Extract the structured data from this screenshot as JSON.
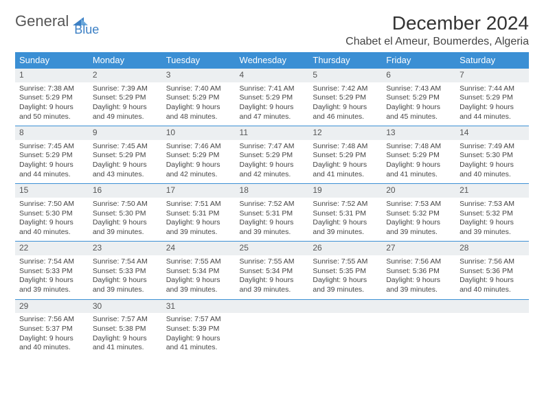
{
  "logo": {
    "text1": "General",
    "text2": "Blue"
  },
  "title": "December 2024",
  "location": "Chabet el Ameur, Boumerdes, Algeria",
  "colors": {
    "header_bg": "#3b8fd4",
    "header_text": "#ffffff",
    "daynum_bg": "#eceff1",
    "row_border": "#3b8fd4",
    "logo_blue": "#3b7fc4",
    "body_text": "#444444"
  },
  "weekdays": [
    "Sunday",
    "Monday",
    "Tuesday",
    "Wednesday",
    "Thursday",
    "Friday",
    "Saturday"
  ],
  "weeks": [
    [
      {
        "n": "1",
        "sr": "Sunrise: 7:38 AM",
        "ss": "Sunset: 5:29 PM",
        "d1": "Daylight: 9 hours",
        "d2": "and 50 minutes."
      },
      {
        "n": "2",
        "sr": "Sunrise: 7:39 AM",
        "ss": "Sunset: 5:29 PM",
        "d1": "Daylight: 9 hours",
        "d2": "and 49 minutes."
      },
      {
        "n": "3",
        "sr": "Sunrise: 7:40 AM",
        "ss": "Sunset: 5:29 PM",
        "d1": "Daylight: 9 hours",
        "d2": "and 48 minutes."
      },
      {
        "n": "4",
        "sr": "Sunrise: 7:41 AM",
        "ss": "Sunset: 5:29 PM",
        "d1": "Daylight: 9 hours",
        "d2": "and 47 minutes."
      },
      {
        "n": "5",
        "sr": "Sunrise: 7:42 AM",
        "ss": "Sunset: 5:29 PM",
        "d1": "Daylight: 9 hours",
        "d2": "and 46 minutes."
      },
      {
        "n": "6",
        "sr": "Sunrise: 7:43 AM",
        "ss": "Sunset: 5:29 PM",
        "d1": "Daylight: 9 hours",
        "d2": "and 45 minutes."
      },
      {
        "n": "7",
        "sr": "Sunrise: 7:44 AM",
        "ss": "Sunset: 5:29 PM",
        "d1": "Daylight: 9 hours",
        "d2": "and 44 minutes."
      }
    ],
    [
      {
        "n": "8",
        "sr": "Sunrise: 7:45 AM",
        "ss": "Sunset: 5:29 PM",
        "d1": "Daylight: 9 hours",
        "d2": "and 44 minutes."
      },
      {
        "n": "9",
        "sr": "Sunrise: 7:45 AM",
        "ss": "Sunset: 5:29 PM",
        "d1": "Daylight: 9 hours",
        "d2": "and 43 minutes."
      },
      {
        "n": "10",
        "sr": "Sunrise: 7:46 AM",
        "ss": "Sunset: 5:29 PM",
        "d1": "Daylight: 9 hours",
        "d2": "and 42 minutes."
      },
      {
        "n": "11",
        "sr": "Sunrise: 7:47 AM",
        "ss": "Sunset: 5:29 PM",
        "d1": "Daylight: 9 hours",
        "d2": "and 42 minutes."
      },
      {
        "n": "12",
        "sr": "Sunrise: 7:48 AM",
        "ss": "Sunset: 5:29 PM",
        "d1": "Daylight: 9 hours",
        "d2": "and 41 minutes."
      },
      {
        "n": "13",
        "sr": "Sunrise: 7:48 AM",
        "ss": "Sunset: 5:29 PM",
        "d1": "Daylight: 9 hours",
        "d2": "and 41 minutes."
      },
      {
        "n": "14",
        "sr": "Sunrise: 7:49 AM",
        "ss": "Sunset: 5:30 PM",
        "d1": "Daylight: 9 hours",
        "d2": "and 40 minutes."
      }
    ],
    [
      {
        "n": "15",
        "sr": "Sunrise: 7:50 AM",
        "ss": "Sunset: 5:30 PM",
        "d1": "Daylight: 9 hours",
        "d2": "and 40 minutes."
      },
      {
        "n": "16",
        "sr": "Sunrise: 7:50 AM",
        "ss": "Sunset: 5:30 PM",
        "d1": "Daylight: 9 hours",
        "d2": "and 39 minutes."
      },
      {
        "n": "17",
        "sr": "Sunrise: 7:51 AM",
        "ss": "Sunset: 5:31 PM",
        "d1": "Daylight: 9 hours",
        "d2": "and 39 minutes."
      },
      {
        "n": "18",
        "sr": "Sunrise: 7:52 AM",
        "ss": "Sunset: 5:31 PM",
        "d1": "Daylight: 9 hours",
        "d2": "and 39 minutes."
      },
      {
        "n": "19",
        "sr": "Sunrise: 7:52 AM",
        "ss": "Sunset: 5:31 PM",
        "d1": "Daylight: 9 hours",
        "d2": "and 39 minutes."
      },
      {
        "n": "20",
        "sr": "Sunrise: 7:53 AM",
        "ss": "Sunset: 5:32 PM",
        "d1": "Daylight: 9 hours",
        "d2": "and 39 minutes."
      },
      {
        "n": "21",
        "sr": "Sunrise: 7:53 AM",
        "ss": "Sunset: 5:32 PM",
        "d1": "Daylight: 9 hours",
        "d2": "and 39 minutes."
      }
    ],
    [
      {
        "n": "22",
        "sr": "Sunrise: 7:54 AM",
        "ss": "Sunset: 5:33 PM",
        "d1": "Daylight: 9 hours",
        "d2": "and 39 minutes."
      },
      {
        "n": "23",
        "sr": "Sunrise: 7:54 AM",
        "ss": "Sunset: 5:33 PM",
        "d1": "Daylight: 9 hours",
        "d2": "and 39 minutes."
      },
      {
        "n": "24",
        "sr": "Sunrise: 7:55 AM",
        "ss": "Sunset: 5:34 PM",
        "d1": "Daylight: 9 hours",
        "d2": "and 39 minutes."
      },
      {
        "n": "25",
        "sr": "Sunrise: 7:55 AM",
        "ss": "Sunset: 5:34 PM",
        "d1": "Daylight: 9 hours",
        "d2": "and 39 minutes."
      },
      {
        "n": "26",
        "sr": "Sunrise: 7:55 AM",
        "ss": "Sunset: 5:35 PM",
        "d1": "Daylight: 9 hours",
        "d2": "and 39 minutes."
      },
      {
        "n": "27",
        "sr": "Sunrise: 7:56 AM",
        "ss": "Sunset: 5:36 PM",
        "d1": "Daylight: 9 hours",
        "d2": "and 39 minutes."
      },
      {
        "n": "28",
        "sr": "Sunrise: 7:56 AM",
        "ss": "Sunset: 5:36 PM",
        "d1": "Daylight: 9 hours",
        "d2": "and 40 minutes."
      }
    ],
    [
      {
        "n": "29",
        "sr": "Sunrise: 7:56 AM",
        "ss": "Sunset: 5:37 PM",
        "d1": "Daylight: 9 hours",
        "d2": "and 40 minutes."
      },
      {
        "n": "30",
        "sr": "Sunrise: 7:57 AM",
        "ss": "Sunset: 5:38 PM",
        "d1": "Daylight: 9 hours",
        "d2": "and 41 minutes."
      },
      {
        "n": "31",
        "sr": "Sunrise: 7:57 AM",
        "ss": "Sunset: 5:39 PM",
        "d1": "Daylight: 9 hours",
        "d2": "and 41 minutes."
      },
      {
        "n": "",
        "sr": "",
        "ss": "",
        "d1": "",
        "d2": "",
        "empty": true
      },
      {
        "n": "",
        "sr": "",
        "ss": "",
        "d1": "",
        "d2": "",
        "empty": true
      },
      {
        "n": "",
        "sr": "",
        "ss": "",
        "d1": "",
        "d2": "",
        "empty": true
      },
      {
        "n": "",
        "sr": "",
        "ss": "",
        "d1": "",
        "d2": "",
        "empty": true
      }
    ]
  ]
}
